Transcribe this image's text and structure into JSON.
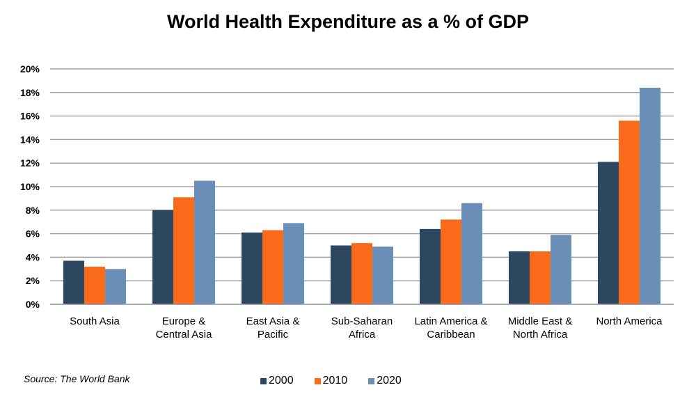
{
  "chart_data": {
    "type": "bar",
    "title": "World Health Expenditure as a % of GDP",
    "categories": [
      [
        "South Asia"
      ],
      [
        "Europe &",
        "Central Asia"
      ],
      [
        "East Asia &",
        "Pacific"
      ],
      [
        "Sub-Saharan",
        "Africa"
      ],
      [
        "Latin America &",
        "Caribbean"
      ],
      [
        "Middle East &",
        "North Africa"
      ],
      [
        "North America"
      ]
    ],
    "series": [
      {
        "name": "2000",
        "color": "#2d4760",
        "values": [
          3.7,
          8.0,
          6.1,
          5.0,
          6.4,
          4.5,
          12.1
        ]
      },
      {
        "name": "2010",
        "color": "#f96b1b",
        "values": [
          3.2,
          9.1,
          6.3,
          5.2,
          7.2,
          4.5,
          15.6
        ]
      },
      {
        "name": "2020",
        "color": "#698fb8",
        "values": [
          3.0,
          10.5,
          6.9,
          4.9,
          8.6,
          5.9,
          18.4
        ]
      }
    ],
    "ylim": [
      0,
      20
    ],
    "yticks": [
      "0%",
      "2%",
      "4%",
      "6%",
      "8%",
      "10%",
      "12%",
      "14%",
      "16%",
      "18%",
      "20%"
    ],
    "grid": true,
    "legend_position": "bottom",
    "source": "Source: The World Bank"
  }
}
